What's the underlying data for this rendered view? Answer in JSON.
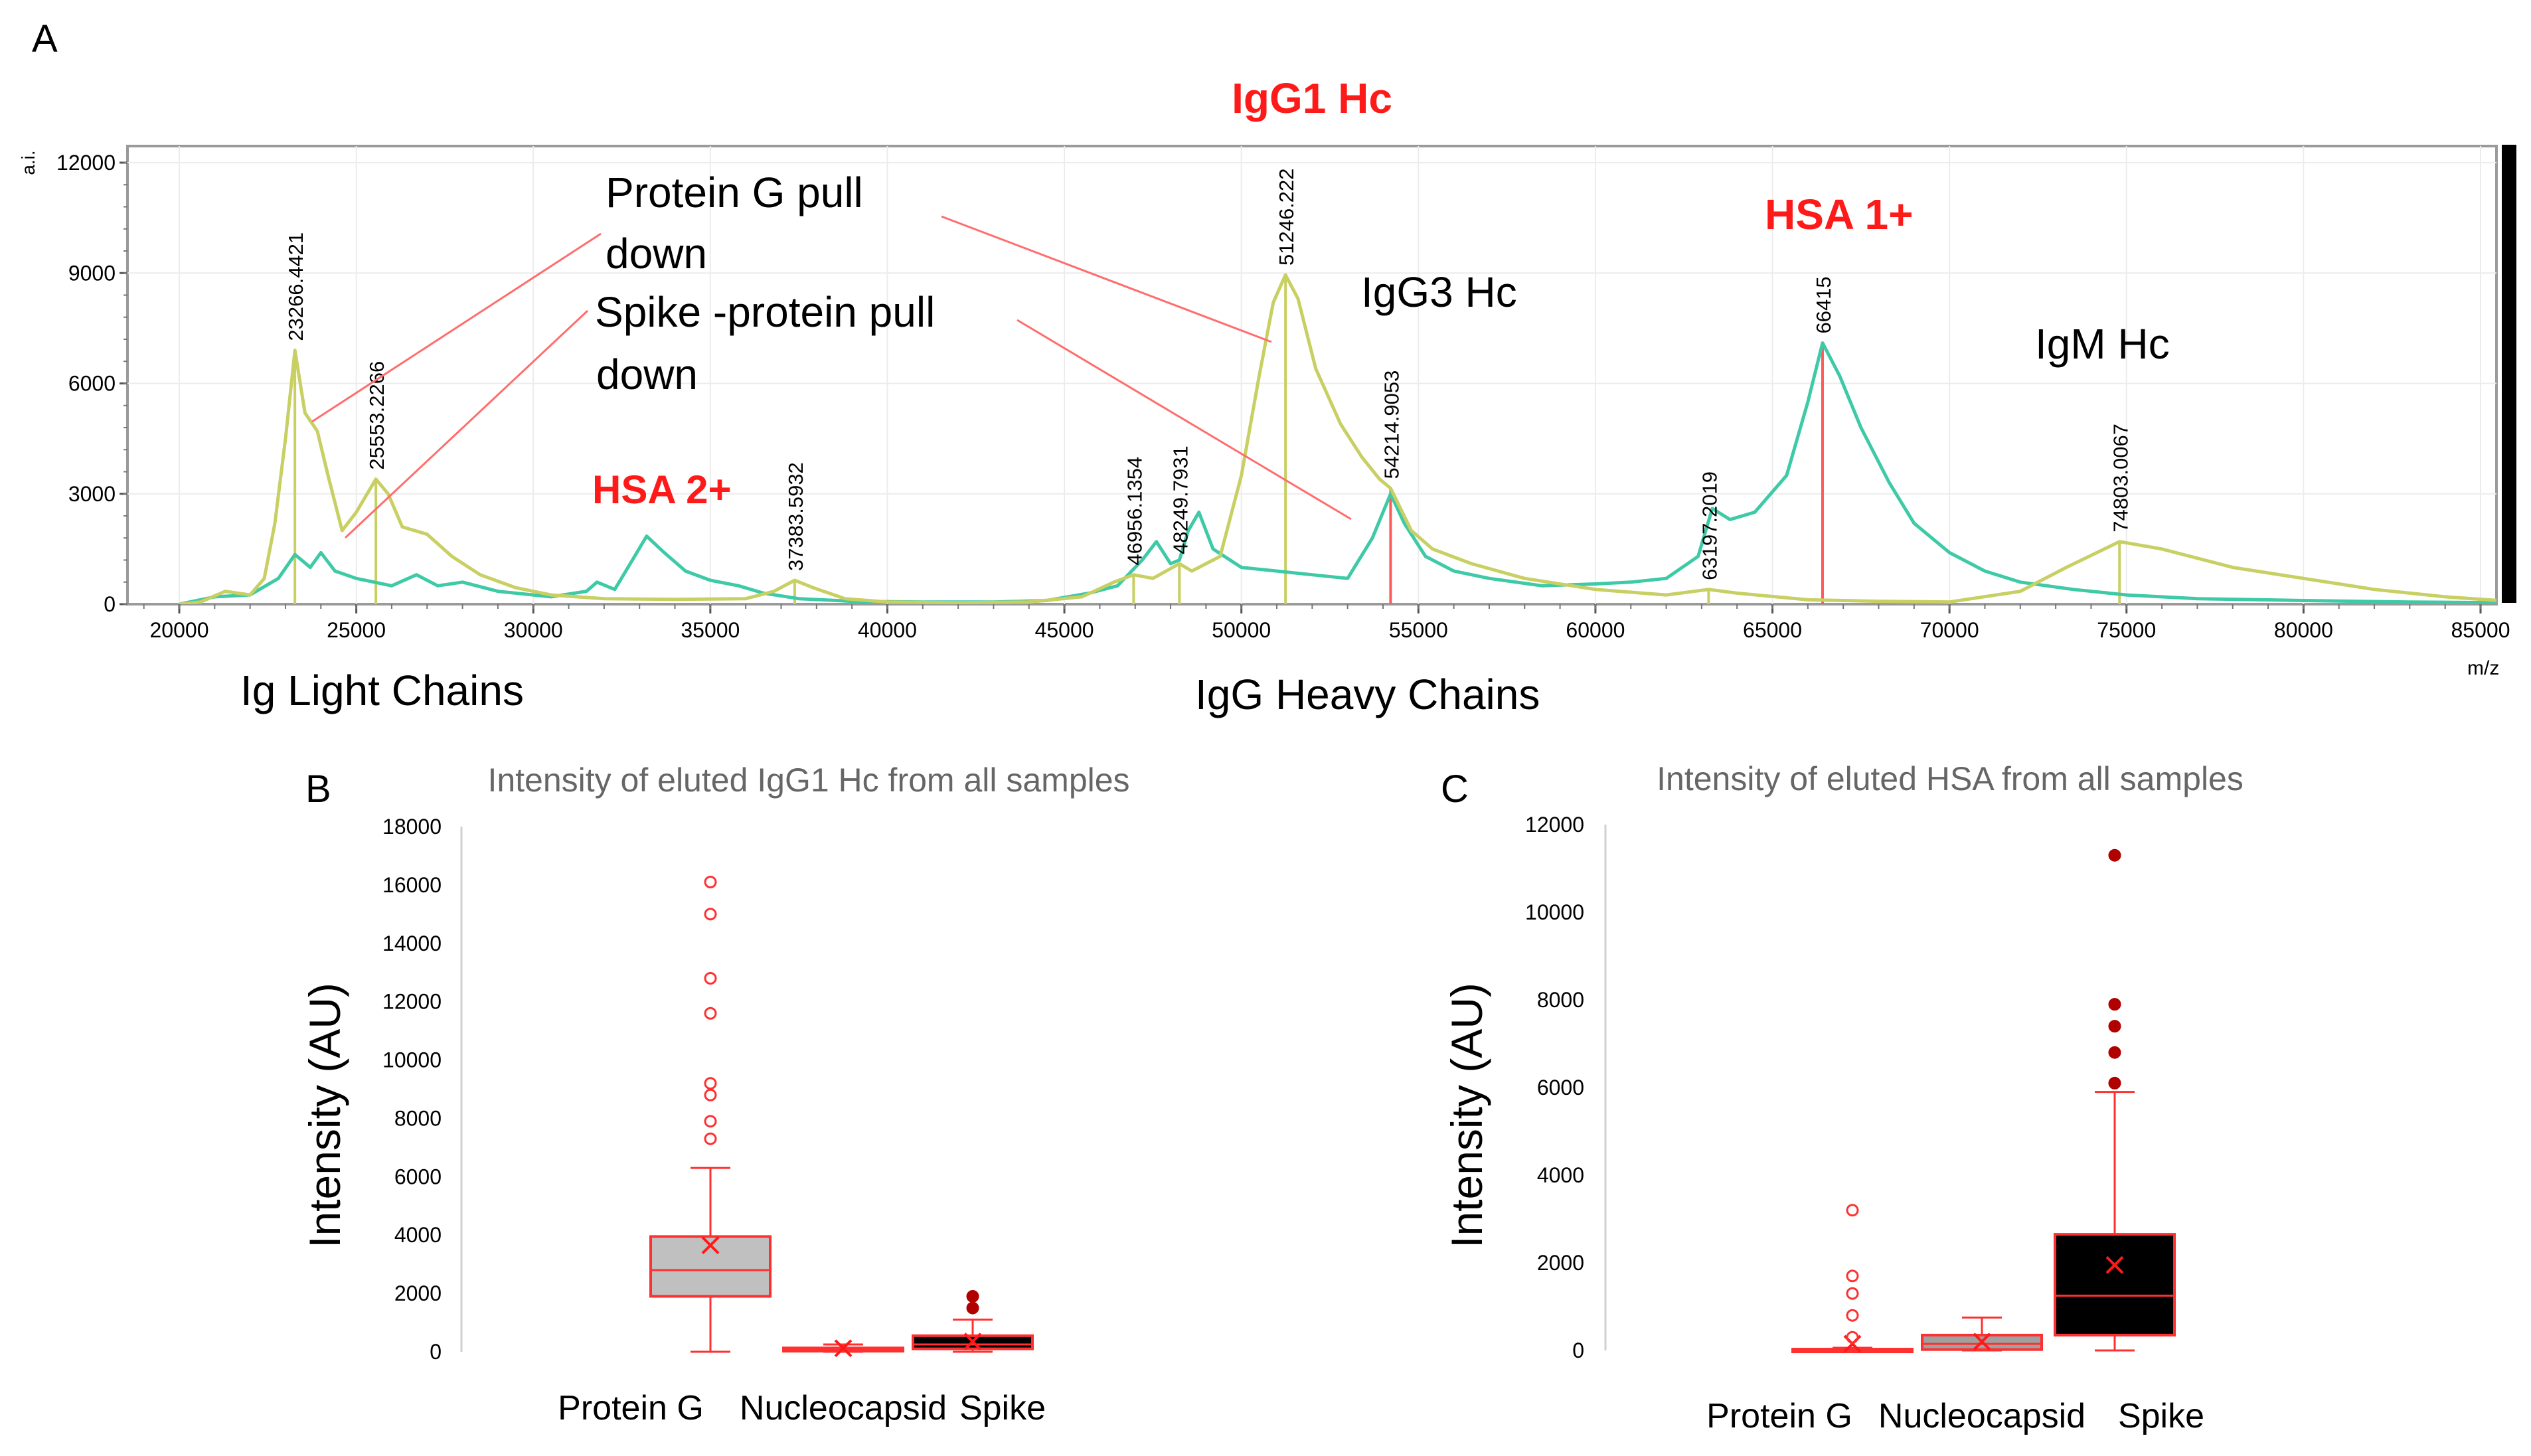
{
  "panel_labels": {
    "a": "A",
    "b": "B",
    "c": "C"
  },
  "colors": {
    "lime": "#c8cf63",
    "teal": "#3ec9a7",
    "red": "#ff1a1a",
    "pink": "#ff6d6d",
    "box_red": "#ff3030",
    "dark_red": "#b00000"
  },
  "chart_data": [
    {
      "panel": "A",
      "type": "line",
      "title": "IgG1 Hc",
      "xlabel": "m/z",
      "ylabel": "a.i.",
      "xlim": [
        19000,
        85500
      ],
      "ylim": [
        0,
        12000
      ],
      "x_ticks": [
        20000,
        25000,
        30000,
        35000,
        40000,
        45000,
        50000,
        55000,
        60000,
        65000,
        70000,
        75000,
        80000,
        85000
      ],
      "y_ticks": [
        0,
        3000,
        6000,
        9000,
        12000
      ],
      "series": [
        {
          "name": "Protein G pull down",
          "color": "#c8cf63",
          "points": [
            [
              20000,
              0
            ],
            [
              20600,
              60
            ],
            [
              21300,
              350
            ],
            [
              22000,
              250
            ],
            [
              22400,
              700
            ],
            [
              22700,
              2200
            ],
            [
              23000,
              4500
            ],
            [
              23266,
              6900
            ],
            [
              23550,
              5200
            ],
            [
              23900,
              4700
            ],
            [
              24200,
              3500
            ],
            [
              24600,
              2000
            ],
            [
              25000,
              2500
            ],
            [
              25553,
              3400
            ],
            [
              25900,
              3000
            ],
            [
              26300,
              2100
            ],
            [
              27000,
              1900
            ],
            [
              27700,
              1300
            ],
            [
              28500,
              800
            ],
            [
              29500,
              450
            ],
            [
              30500,
              250
            ],
            [
              32000,
              150
            ],
            [
              34000,
              130
            ],
            [
              36000,
              150
            ],
            [
              36800,
              350
            ],
            [
              37383,
              650
            ],
            [
              37900,
              450
            ],
            [
              38800,
              150
            ],
            [
              40000,
              60
            ],
            [
              42000,
              40
            ],
            [
              44000,
              60
            ],
            [
              45500,
              200
            ],
            [
              46400,
              600
            ],
            [
              46956,
              800
            ],
            [
              47500,
              700
            ],
            [
              48249,
              1100
            ],
            [
              48600,
              900
            ],
            [
              49400,
              1300
            ],
            [
              50000,
              3500
            ],
            [
              50500,
              6200
            ],
            [
              50900,
              8200
            ],
            [
              51246,
              8950
            ],
            [
              51600,
              8300
            ],
            [
              52100,
              6400
            ],
            [
              52800,
              4900
            ],
            [
              53400,
              4000
            ],
            [
              53900,
              3400
            ],
            [
              54214,
              3150
            ],
            [
              54800,
              2000
            ],
            [
              55400,
              1500
            ],
            [
              56500,
              1100
            ],
            [
              58000,
              700
            ],
            [
              60000,
              400
            ],
            [
              62000,
              250
            ],
            [
              63197,
              400
            ],
            [
              64000,
              300
            ],
            [
              66000,
              120
            ],
            [
              68000,
              80
            ],
            [
              70000,
              60
            ],
            [
              72000,
              350
            ],
            [
              73300,
              1000
            ],
            [
              74803,
              1700
            ],
            [
              76000,
              1500
            ],
            [
              78000,
              1000
            ],
            [
              80000,
              700
            ],
            [
              82000,
              400
            ],
            [
              84000,
              200
            ],
            [
              85500,
              100
            ]
          ]
        },
        {
          "name": "Spike -protein pull down",
          "color": "#3ec9a7",
          "points": [
            [
              20000,
              0
            ],
            [
              21000,
              200
            ],
            [
              22000,
              250
            ],
            [
              22800,
              700
            ],
            [
              23266,
              1350
            ],
            [
              23700,
              1000
            ],
            [
              24000,
              1400
            ],
            [
              24400,
              900
            ],
            [
              25000,
              700
            ],
            [
              26000,
              500
            ],
            [
              26700,
              800
            ],
            [
              27300,
              500
            ],
            [
              28000,
              600
            ],
            [
              29000,
              350
            ],
            [
              30500,
              200
            ],
            [
              31500,
              350
            ],
            [
              31800,
              600
            ],
            [
              32300,
              400
            ],
            [
              32800,
              1200
            ],
            [
              33200,
              1850
            ],
            [
              33700,
              1400
            ],
            [
              34300,
              900
            ],
            [
              35000,
              650
            ],
            [
              35800,
              500
            ],
            [
              36500,
              300
            ],
            [
              37500,
              150
            ],
            [
              39000,
              80
            ],
            [
              41000,
              60
            ],
            [
              43000,
              60
            ],
            [
              44500,
              100
            ],
            [
              45700,
              300
            ],
            [
              46500,
              500
            ],
            [
              47200,
              1200
            ],
            [
              47600,
              1700
            ],
            [
              48000,
              1100
            ],
            [
              48249,
              1200
            ],
            [
              48500,
              2000
            ],
            [
              48800,
              2500
            ],
            [
              49200,
              1500
            ],
            [
              50000,
              1000
            ],
            [
              51000,
              900
            ],
            [
              52000,
              800
            ],
            [
              53000,
              700
            ],
            [
              53700,
              1800
            ],
            [
              54214,
              3000
            ],
            [
              54600,
              2200
            ],
            [
              55200,
              1300
            ],
            [
              56000,
              900
            ],
            [
              57000,
              700
            ],
            [
              58500,
              500
            ],
            [
              60000,
              550
            ],
            [
              61000,
              600
            ],
            [
              62000,
              700
            ],
            [
              62900,
              1300
            ],
            [
              63300,
              2600
            ],
            [
              63800,
              2300
            ],
            [
              64500,
              2500
            ],
            [
              65400,
              3500
            ],
            [
              66000,
              5500
            ],
            [
              66415,
              7100
            ],
            [
              66900,
              6200
            ],
            [
              67500,
              4800
            ],
            [
              68300,
              3300
            ],
            [
              69000,
              2200
            ],
            [
              70000,
              1400
            ],
            [
              71000,
              900
            ],
            [
              72000,
              600
            ],
            [
              73500,
              400
            ],
            [
              75000,
              250
            ],
            [
              77000,
              150
            ],
            [
              80000,
              100
            ],
            [
              83000,
              60
            ],
            [
              85500,
              40
            ]
          ]
        }
      ],
      "peak_labels": [
        {
          "x": 23266,
          "y": 6900,
          "label": "23266.4421"
        },
        {
          "x": 25553,
          "y": 3400,
          "label": "25553.2266"
        },
        {
          "x": 37383,
          "y": 650,
          "label": "37383.5932"
        },
        {
          "x": 46956,
          "y": 800,
          "label": "46956.1354"
        },
        {
          "x": 48249,
          "y": 1100,
          "label": "48249.7931"
        },
        {
          "x": 51246,
          "y": 8950,
          "label": "51246.222"
        },
        {
          "x": 54214,
          "y": 3150,
          "label": "54214.9053"
        },
        {
          "x": 63197,
          "y": 400,
          "label": "63197.2019"
        },
        {
          "x": 66415,
          "y": 7100,
          "label": "66415"
        },
        {
          "x": 74803,
          "y": 1700,
          "label": "74803.0067"
        }
      ],
      "annotations": {
        "protein_g_line1": "Protein G pull",
        "protein_g_line2": "down",
        "spike_line1": "Spike -protein pull",
        "spike_line2": "down",
        "igg3": "IgG3 Hc",
        "hsa1": "HSA 1+",
        "igm": "IgM Hc",
        "hsa2": "HSA 2+",
        "light_chains": "Ig Light Chains",
        "heavy_chains": "IgG Heavy Chains"
      }
    },
    {
      "panel": "B",
      "type": "box",
      "title": "Intensity of eluted IgG1 Hc from all samples",
      "ylabel": "Intensity (AU)",
      "ylim": [
        0,
        18000
      ],
      "y_ticks": [
        0,
        2000,
        4000,
        6000,
        8000,
        10000,
        12000,
        14000,
        16000,
        18000
      ],
      "categories": [
        "Protein G",
        "Nucleocapsid",
        "Spike"
      ],
      "boxes": [
        {
          "name": "Protein G",
          "min": 0,
          "q1": 1900,
          "median": 2800,
          "q3": 3950,
          "max": 6300,
          "mean": 3650,
          "outliers": [
            7300,
            7900,
            8800,
            9200,
            11600,
            12800,
            15000,
            16100
          ],
          "fill": "#c0c0c0",
          "stroke": "#ff3030"
        },
        {
          "name": "Nucleocapsid",
          "min": 0,
          "q1": 20,
          "median": 60,
          "q3": 130,
          "max": 250,
          "mean": 120,
          "outliers": [],
          "fill": "#c0c0c0",
          "stroke": "#ff3030"
        },
        {
          "name": "Spike",
          "min": 0,
          "q1": 100,
          "median": 250,
          "q3": 550,
          "max": 1100,
          "mean": 350,
          "outliers": [
            1500,
            1900
          ],
          "fill": "#000000",
          "stroke": "#ff3030"
        }
      ]
    },
    {
      "panel": "C",
      "type": "box",
      "title": "Intensity of eluted HSA from all samples",
      "ylabel": "Intensity (AU)",
      "ylim": [
        0,
        12000
      ],
      "y_ticks": [
        0,
        2000,
        4000,
        6000,
        8000,
        10000,
        12000
      ],
      "categories": [
        "Protein G",
        "Nucleocapsid",
        "Spike"
      ],
      "boxes": [
        {
          "name": "Protein G",
          "min": 0,
          "q1": 0,
          "median": 0,
          "q3": 30,
          "max": 60,
          "mean": 150,
          "outliers": [
            300,
            800,
            1300,
            1700,
            3200
          ],
          "fill": "#c0c0c0",
          "stroke": "#ff3030"
        },
        {
          "name": "Nucleocapsid",
          "min": 0,
          "q1": 20,
          "median": 150,
          "q3": 350,
          "max": 750,
          "mean": 200,
          "outliers": [],
          "fill": "#a0a0a0",
          "stroke": "#ff3030"
        },
        {
          "name": "Spike",
          "min": 0,
          "q1": 350,
          "median": 1250,
          "q3": 2650,
          "max": 5900,
          "mean": 1950,
          "outliers": [
            6100,
            6800,
            7400,
            7900,
            11300
          ],
          "fill": "#000000",
          "stroke": "#ff3030"
        }
      ]
    }
  ]
}
